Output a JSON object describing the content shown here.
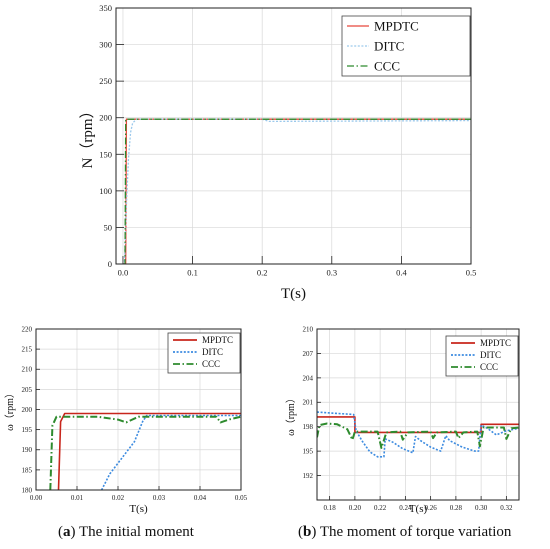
{
  "chart_data": [
    {
      "type": "line",
      "title": "",
      "xlabel": "T(s)",
      "ylabel": "N（rpm）",
      "xlim": [
        -0.01,
        0.5
      ],
      "ylim": [
        0,
        350
      ],
      "xticks": [
        0.0,
        0.1,
        0.2,
        0.3,
        0.4,
        0.5
      ],
      "yticks": [
        0,
        50,
        100,
        150,
        200,
        250,
        300,
        350
      ],
      "xtick_labels": [
        "0.0",
        "0.1",
        "0.2",
        "0.3",
        "0.4",
        "0.5"
      ],
      "ytick_labels": [
        "0",
        "50",
        "100",
        "150",
        "200",
        "250",
        "300",
        "350"
      ],
      "grid": true,
      "legend_position": "top-right",
      "series": [
        {
          "name": "MPDTC",
          "color": "#e8473c",
          "style": "solid",
          "x": [
            0.0,
            0.004,
            0.005,
            0.5
          ],
          "y": [
            0,
            0,
            198,
            198
          ]
        },
        {
          "name": "DITC",
          "color": "#9cc9ec",
          "style": "dotted",
          "x": [
            0.0,
            0.002,
            0.005,
            0.008,
            0.011,
            0.014,
            0.02,
            0.2,
            0.21,
            0.5
          ],
          "y": [
            0,
            0,
            80,
            145,
            180,
            193,
            198,
            198,
            195,
            196
          ]
        },
        {
          "name": "CCC",
          "color": "#2e8b2e",
          "style": "dashdot",
          "x": [
            0.0,
            0.003,
            0.004,
            0.5
          ],
          "y": [
            0,
            0,
            198,
            198
          ]
        }
      ]
    },
    {
      "type": "line",
      "title": "",
      "xlabel": "T(s)",
      "ylabel": "ω（rpm）",
      "xlim": [
        0.0,
        0.05
      ],
      "ylim": [
        180,
        220
      ],
      "xticks": [
        0.0,
        0.01,
        0.02,
        0.03,
        0.04,
        0.05
      ],
      "yticks": [
        180,
        185,
        190,
        195,
        200,
        205,
        210,
        215,
        220
      ],
      "xtick_labels": [
        "0.00",
        "0.01",
        "0.02",
        "0.03",
        "0.04",
        "0.05"
      ],
      "ytick_labels": [
        "180",
        "185",
        "190",
        "195",
        "200",
        "205",
        "210",
        "215",
        "220"
      ],
      "grid": true,
      "legend_position": "top-right",
      "series": [
        {
          "name": "MPDTC",
          "color": "#c8261c",
          "style": "solid",
          "x": [
            0.0055,
            0.006,
            0.007,
            0.05
          ],
          "y": [
            180,
            197,
            199,
            199
          ]
        },
        {
          "name": "DITC",
          "color": "#3c8be0",
          "style": "dotted",
          "x": [
            0.016,
            0.018,
            0.021,
            0.024,
            0.026,
            0.027,
            0.05
          ],
          "y": [
            180,
            184,
            188,
            192,
            197,
            198.5,
            198.5
          ]
        },
        {
          "name": "CCC",
          "color": "#2e8b2e",
          "style": "dashdot",
          "x": [
            0.0035,
            0.004,
            0.005,
            0.015,
            0.02,
            0.022,
            0.025,
            0.03,
            0.044,
            0.045,
            0.047,
            0.05
          ],
          "y": [
            180,
            196,
            198.2,
            198.2,
            197.5,
            196.8,
            198.2,
            198.2,
            198.2,
            196.8,
            197.5,
            198.2
          ]
        }
      ]
    },
    {
      "type": "line",
      "title": "",
      "xlabel": "T(s)",
      "ylabel": "ω（rpm）",
      "xlim": [
        0.17,
        0.33
      ],
      "ylim": [
        189,
        210
      ],
      "xticks": [
        0.18,
        0.2,
        0.22,
        0.24,
        0.26,
        0.28,
        0.3,
        0.32
      ],
      "yticks": [
        192,
        195,
        198,
        201,
        204,
        207,
        210
      ],
      "xtick_labels": [
        "0.18",
        "0.20",
        "0.22",
        "0.24",
        "0.26",
        "0.28",
        "0.30",
        "0.32"
      ],
      "ytick_labels": [
        "192",
        "195",
        "198",
        "201",
        "204",
        "207",
        "210"
      ],
      "grid": true,
      "legend_position": "top-right",
      "series": [
        {
          "name": "MPDTC",
          "color": "#c8261c",
          "style": "solid",
          "x": [
            0.17,
            0.2,
            0.2,
            0.3,
            0.3,
            0.33
          ],
          "y": [
            199.2,
            199.2,
            197.3,
            197.3,
            198.3,
            198.3
          ]
        },
        {
          "name": "DITC",
          "color": "#3c8be0",
          "style": "dotted",
          "x": [
            0.17,
            0.199,
            0.201,
            0.206,
            0.212,
            0.218,
            0.223,
            0.224,
            0.23,
            0.238,
            0.246,
            0.248,
            0.252,
            0.26,
            0.268,
            0.272,
            0.275,
            0.285,
            0.295,
            0.298,
            0.3,
            0.305,
            0.312,
            0.32,
            0.33
          ],
          "y": [
            199.8,
            199.5,
            197.5,
            196.2,
            194.9,
            194.3,
            194.3,
            196.5,
            196.1,
            195.3,
            194.8,
            196.8,
            196.3,
            195.5,
            195.0,
            196.9,
            196.3,
            195.5,
            195.0,
            195.0,
            198.2,
            197.8,
            197.0,
            197.5,
            197.8
          ]
        },
        {
          "name": "CCC",
          "color": "#2e8b2e",
          "style": "dashdot",
          "x": [
            0.17,
            0.172,
            0.178,
            0.186,
            0.194,
            0.198,
            0.2,
            0.218,
            0.221,
            0.225,
            0.236,
            0.238,
            0.242,
            0.26,
            0.262,
            0.265,
            0.28,
            0.282,
            0.286,
            0.297,
            0.299,
            0.302,
            0.318,
            0.32,
            0.324,
            0.33
          ],
          "y": [
            196.7,
            198.2,
            198.4,
            198.3,
            197.7,
            196.4,
            197.4,
            197.4,
            195.4,
            197.3,
            197.4,
            196.4,
            197.3,
            197.4,
            196.6,
            197.3,
            197.4,
            196.6,
            197.3,
            197.4,
            195.6,
            197.9,
            197.9,
            196.5,
            197.8,
            197.9
          ]
        }
      ]
    }
  ],
  "captions": {
    "a_label": "a",
    "a_text": "The initial moment",
    "b_label": "b",
    "b_text": "The moment of torque variation"
  }
}
